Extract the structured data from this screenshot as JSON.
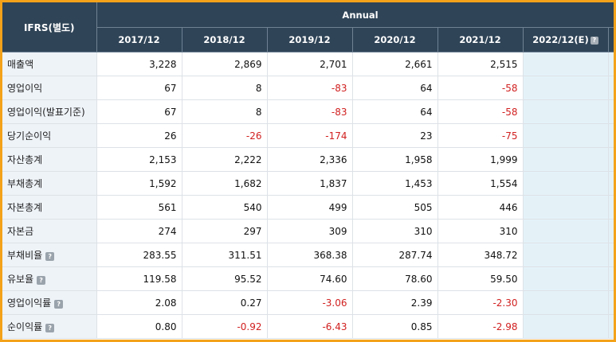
{
  "header": {
    "basis_label": "IFRS(별도)",
    "period_group": "Annual",
    "periods": [
      "2017/12",
      "2018/12",
      "2019/12",
      "2020/12",
      "2021/12",
      "2022/12(E)"
    ]
  },
  "help_icon_glyph": "?",
  "colors": {
    "header_bg": "#2f4457",
    "label_bg": "#eef3f8",
    "estimate_bg": "#e4f2f8",
    "negative": "#d11f1f",
    "frame_border": "#f3a21a"
  },
  "rows": [
    {
      "label": "매출액",
      "help": false,
      "values": [
        "3,228",
        "2,869",
        "2,701",
        "2,661",
        "2,515",
        ""
      ]
    },
    {
      "label": "영업이익",
      "help": false,
      "values": [
        "67",
        "8",
        "-83",
        "64",
        "-58",
        ""
      ]
    },
    {
      "label": "영업이익(발표기준)",
      "help": false,
      "values": [
        "67",
        "8",
        "-83",
        "64",
        "-58",
        ""
      ]
    },
    {
      "label": "당기순이익",
      "help": false,
      "values": [
        "26",
        "-26",
        "-174",
        "23",
        "-75",
        ""
      ]
    },
    {
      "label": "자산총계",
      "help": false,
      "values": [
        "2,153",
        "2,222",
        "2,336",
        "1,958",
        "1,999",
        ""
      ]
    },
    {
      "label": "부채총계",
      "help": false,
      "values": [
        "1,592",
        "1,682",
        "1,837",
        "1,453",
        "1,554",
        ""
      ]
    },
    {
      "label": "자본총계",
      "help": false,
      "values": [
        "561",
        "540",
        "499",
        "505",
        "446",
        ""
      ]
    },
    {
      "label": "자본금",
      "help": false,
      "values": [
        "274",
        "297",
        "309",
        "310",
        "310",
        ""
      ]
    },
    {
      "label": "부채비율",
      "help": true,
      "values": [
        "283.55",
        "311.51",
        "368.38",
        "287.74",
        "348.72",
        ""
      ]
    },
    {
      "label": "유보율",
      "help": true,
      "values": [
        "119.58",
        "95.52",
        "74.60",
        "78.60",
        "59.50",
        ""
      ]
    },
    {
      "label": "영업이익률",
      "help": true,
      "values": [
        "2.08",
        "0.27",
        "-3.06",
        "2.39",
        "-2.30",
        ""
      ]
    },
    {
      "label": "순이익률",
      "help": true,
      "values": [
        "0.80",
        "-0.92",
        "-6.43",
        "0.85",
        "-2.98",
        ""
      ]
    }
  ]
}
